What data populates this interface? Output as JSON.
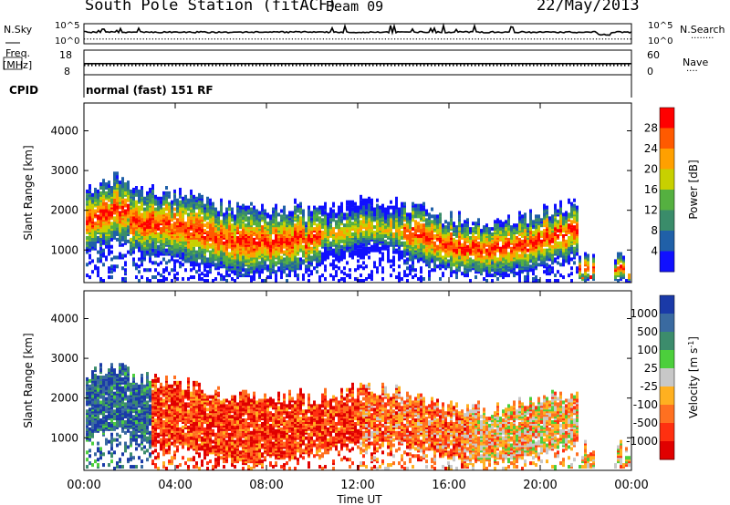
{
  "header": {
    "station": "South Pole Station (fitACF)",
    "beam": "Beam 09",
    "date": "22/May/2013"
  },
  "strip_labels": {
    "nsky": "N.Sky",
    "nsearch": "N.Search",
    "nsearch_marker": "........",
    "freq_line1": "Freq.",
    "freq_line2": "[MHz]",
    "nave": "Nave",
    "nave_marker": "....",
    "cpid": "CPID",
    "cpid_value": "normal (fast) 151 RF"
  },
  "colors": {
    "noise_line": "#000000",
    "axis": "#000000"
  },
  "chart_data": [
    {
      "type": "line",
      "name": "noise",
      "left_ticks": [
        "10^5",
        "10^0"
      ],
      "right_ticks": [
        "10^5",
        "10^0"
      ],
      "series": [
        {
          "name": "N.Sky",
          "style": "solid",
          "level": 0.42
        },
        {
          "name": "N.Search",
          "style": "dotted",
          "level": 0.1
        }
      ]
    },
    {
      "type": "line",
      "name": "freq-nave",
      "left_ticks": [
        "18",
        "8"
      ],
      "right_ticks": [
        "60",
        "0"
      ],
      "series": [
        {
          "name": "Freq. [MHz]",
          "style": "solid",
          "value": 12.5
        },
        {
          "name": "Nave",
          "style": "dotted",
          "value": 32
        }
      ]
    },
    {
      "type": "heatmap",
      "name": "power",
      "ylabel": "Slant Range [km]",
      "yticks": [
        "4000",
        "3000",
        "2000",
        "1000"
      ],
      "ylim": [
        180,
        4700
      ],
      "colorbar_label": "Power [dB]",
      "colorbar_ticks": [
        "28",
        "24",
        "20",
        "16",
        "12",
        "8",
        "4"
      ],
      "colorbar_colors": [
        "#ff0000",
        "#ff5a00",
        "#ffa000",
        "#c8d000",
        "#55b040",
        "#3a8c6a",
        "#2060a8",
        "#1010ff"
      ]
    },
    {
      "type": "heatmap",
      "name": "velocity",
      "ylabel": "Slant Range [km]",
      "yticks": [
        "4000",
        "3000",
        "2000",
        "1000"
      ],
      "ylim": [
        180,
        4700
      ],
      "colorbar_label": "Velocity [m s",
      "colorbar_label_sup": "-1",
      "colorbar_label_end": "]",
      "colorbar_ticks": [
        "1000",
        "500",
        "100",
        "25",
        "-25",
        "-100",
        "-500",
        "-1000"
      ],
      "colorbar_colors": [
        "#1a3aa8",
        "#3a6aa0",
        "#3c8c6c",
        "#4ccf3c",
        "#c8c8c8",
        "#ffb020",
        "#ff7020",
        "#ff3010",
        "#e00000"
      ]
    }
  ],
  "xaxis": {
    "label": "Time UT",
    "ticks": [
      "00:00",
      "04:00",
      "08:00",
      "12:00",
      "16:00",
      "20:00",
      "00:00"
    ]
  }
}
